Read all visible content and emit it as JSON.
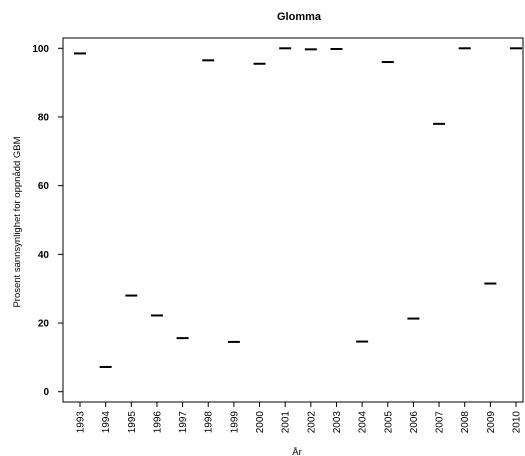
{
  "chart_data": {
    "type": "scatter",
    "marker": "horizontal-dash",
    "title": "Glomma",
    "xlabel": "År",
    "ylabel": "Prosent sannsynlighet for oppnådd GBM",
    "ylim": [
      -3,
      103
    ],
    "yticks": [
      0,
      20,
      40,
      60,
      80,
      100
    ],
    "grid": false,
    "categories": [
      "1993",
      "1994",
      "1995",
      "1996",
      "1997",
      "1998",
      "1999",
      "2000",
      "2001",
      "2002",
      "2003",
      "2004",
      "2005",
      "2006",
      "2007",
      "2008",
      "2009",
      "2010"
    ],
    "values": [
      98.5,
      7.2,
      28,
      22.2,
      15.6,
      96.5,
      14.5,
      95.5,
      100,
      99.7,
      99.8,
      14.6,
      96,
      21.3,
      78,
      100,
      31.5,
      100
    ]
  }
}
